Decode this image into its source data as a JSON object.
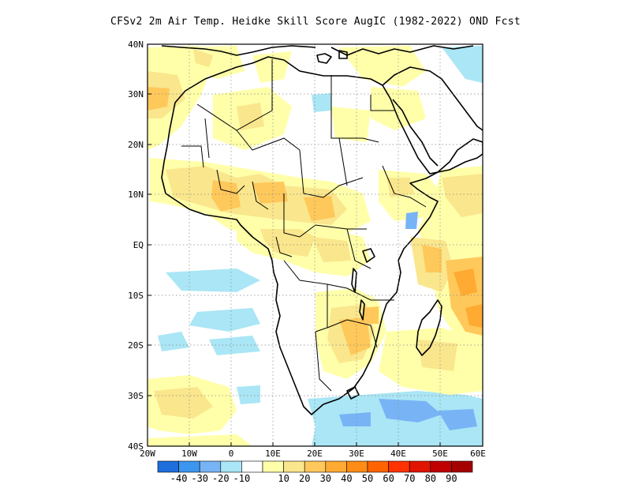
{
  "title": "CFSv2  2m Air Temp. Heidke Skill Score AugIC (1982-2022) OND Fcst",
  "axes": {
    "lat_labels": [
      "40N",
      "30N",
      "20N",
      "10N",
      "EQ",
      "10S",
      "20S",
      "30S",
      "40S"
    ],
    "lon_labels": [
      "20W",
      "10W",
      "0",
      "10E",
      "20E",
      "30E",
      "40E",
      "50E",
      "60E"
    ]
  },
  "colorbar": {
    "colors": [
      "#1e6edc",
      "#3c96f0",
      "#78b4f5",
      "#aae6f5",
      "#ffffff",
      "#ffffaa",
      "#fae68c",
      "#ffc85a",
      "#ffaa32",
      "#ff8c14",
      "#ff6400",
      "#ff3200",
      "#e11400",
      "#c00000",
      "#a50000"
    ],
    "labels": [
      "-40",
      "-30",
      "-20",
      "-10",
      "10",
      "20",
      "30",
      "40",
      "50",
      "60",
      "70",
      "80",
      "90"
    ]
  },
  "chart_data": {
    "type": "heatmap",
    "title": "CFSv2  2m Air Temp. Heidke Skill Score AugIC (1982-2022) OND Fcst",
    "x_range": [
      "20W",
      "60E"
    ],
    "y_range": [
      "40S",
      "40N"
    ],
    "grid": true,
    "colorbar_levels": [
      -40,
      -30,
      -20,
      -10,
      10,
      20,
      30,
      40,
      50,
      60,
      70,
      80,
      90
    ]
  }
}
